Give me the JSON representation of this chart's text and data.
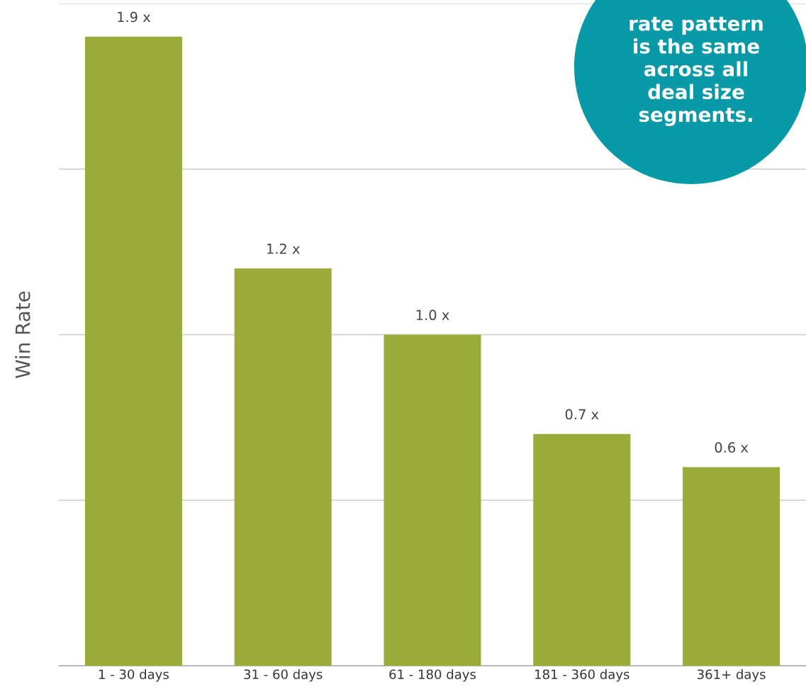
{
  "chart_data": {
    "type": "bar",
    "ylabel": "Win Rate",
    "categories": [
      "1 - 30 days",
      "31 - 60 days",
      "61 - 180 days",
      "181 - 360 days",
      "361+ days"
    ],
    "values": [
      1.9,
      1.2,
      1.0,
      0.7,
      0.6
    ],
    "value_labels": [
      "1.9 x",
      "1.2 x",
      "1.0 x",
      "0.7 x",
      "0.6 x"
    ],
    "color": "#9caa3a",
    "ylim": [
      0,
      2.0
    ],
    "yticks": [
      {
        "value": 0,
        "label": null
      },
      {
        "value": 0.5,
        "label": null
      },
      {
        "value": 1.0,
        "label": null
      },
      {
        "value": 1.5,
        "label": null
      },
      {
        "value": 2.0,
        "label": null
      }
    ],
    "grid": "y",
    "tick_labels": "x",
    "annotations": [
      "rate pattern\nis the same\nacross all\ndeal size\nsegments."
    ]
  }
}
